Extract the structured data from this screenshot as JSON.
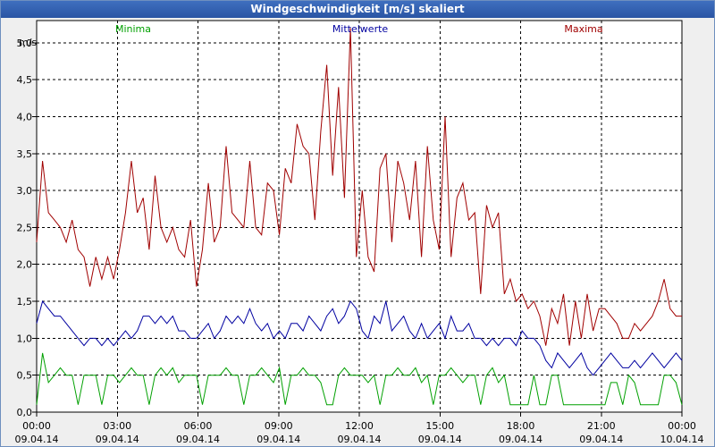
{
  "window": {
    "title": "Windgeschwindigkeit [m/s] skaliert"
  },
  "chart_data": {
    "type": "line",
    "title": "Windgeschwindigkeit [m/s] skaliert",
    "ylabel": "m/s",
    "ylim": [
      0,
      5.3
    ],
    "xlim": [
      0,
      24
    ],
    "y_ticks": [
      "0,0",
      "0,5",
      "1,0",
      "1,5",
      "2,0",
      "2,5",
      "3,0",
      "3,5",
      "4,0",
      "4,5",
      "5,0"
    ],
    "x_ticks": [
      {
        "time": "00:00",
        "date": "09.04.14"
      },
      {
        "time": "03:00",
        "date": "09.04.14"
      },
      {
        "time": "06:00",
        "date": "09.04.14"
      },
      {
        "time": "09:00",
        "date": "09.04.14"
      },
      {
        "time": "12:00",
        "date": "09.04.14"
      },
      {
        "time": "15:00",
        "date": "09.04.14"
      },
      {
        "time": "18:00",
        "date": "09.04.14"
      },
      {
        "time": "21:00",
        "date": "09.04.14"
      },
      {
        "time": "00:00",
        "date": "10.04.14"
      }
    ],
    "grid": true,
    "series": [
      {
        "name": "Minima",
        "color": "#00a000",
        "values": [
          0.1,
          0.8,
          0.4,
          0.5,
          0.6,
          0.5,
          0.5,
          0.1,
          0.5,
          0.5,
          0.5,
          0.1,
          0.5,
          0.5,
          0.4,
          0.5,
          0.6,
          0.5,
          0.5,
          0.1,
          0.5,
          0.6,
          0.5,
          0.6,
          0.4,
          0.5,
          0.5,
          0.5,
          0.1,
          0.5,
          0.5,
          0.5,
          0.6,
          0.5,
          0.5,
          0.1,
          0.5,
          0.5,
          0.6,
          0.5,
          0.4,
          0.6,
          0.1,
          0.5,
          0.5,
          0.6,
          0.5,
          0.5,
          0.4,
          0.1,
          0.1,
          0.5,
          0.6,
          0.5,
          0.5,
          0.5,
          0.4,
          0.5,
          0.1,
          0.5,
          0.5,
          0.6,
          0.5,
          0.5,
          0.6,
          0.4,
          0.5,
          0.1,
          0.5,
          0.5,
          0.6,
          0.5,
          0.4,
          0.5,
          0.5,
          0.1,
          0.5,
          0.6,
          0.4,
          0.5,
          0.1,
          0.1,
          0.1,
          0.1,
          0.5,
          0.1,
          0.1,
          0.5,
          0.5,
          0.1,
          0.1,
          0.1,
          0.1,
          0.1,
          0.1,
          0.1,
          0.1,
          0.4,
          0.4,
          0.1,
          0.5,
          0.4,
          0.1,
          0.1,
          0.1,
          0.1,
          0.5,
          0.5,
          0.4,
          0.1
        ]
      },
      {
        "name": "Mittelwerte",
        "color": "#0000a0",
        "values": [
          1.2,
          1.5,
          1.4,
          1.3,
          1.3,
          1.2,
          1.1,
          1.0,
          0.9,
          1.0,
          1.0,
          0.9,
          1.0,
          0.9,
          1.0,
          1.1,
          1.0,
          1.1,
          1.3,
          1.3,
          1.2,
          1.3,
          1.2,
          1.3,
          1.1,
          1.1,
          1.0,
          1.0,
          1.1,
          1.2,
          1.0,
          1.1,
          1.3,
          1.2,
          1.3,
          1.2,
          1.4,
          1.2,
          1.1,
          1.2,
          1.0,
          1.1,
          1.0,
          1.2,
          1.2,
          1.1,
          1.3,
          1.2,
          1.1,
          1.3,
          1.4,
          1.2,
          1.3,
          1.5,
          1.4,
          1.1,
          1.0,
          1.3,
          1.2,
          1.5,
          1.1,
          1.2,
          1.3,
          1.1,
          1.0,
          1.2,
          1.0,
          1.1,
          1.2,
          1.0,
          1.3,
          1.1,
          1.1,
          1.2,
          1.0,
          1.0,
          0.9,
          1.0,
          0.9,
          1.0,
          1.0,
          0.9,
          1.1,
          1.0,
          1.0,
          0.9,
          0.7,
          0.6,
          0.8,
          0.7,
          0.6,
          0.7,
          0.8,
          0.6,
          0.5,
          0.6,
          0.7,
          0.8,
          0.7,
          0.6,
          0.6,
          0.7,
          0.6,
          0.7,
          0.8,
          0.7,
          0.6,
          0.7,
          0.8,
          0.7
        ]
      },
      {
        "name": "Maxima",
        "color": "#a00000",
        "values": [
          2.3,
          3.4,
          2.7,
          2.6,
          2.5,
          2.3,
          2.6,
          2.2,
          2.1,
          1.7,
          2.1,
          1.8,
          2.1,
          1.8,
          2.2,
          2.7,
          3.4,
          2.7,
          2.9,
          2.2,
          3.2,
          2.5,
          2.3,
          2.5,
          2.2,
          2.1,
          2.6,
          1.7,
          2.2,
          3.1,
          2.3,
          2.5,
          3.6,
          2.7,
          2.6,
          2.5,
          3.4,
          2.5,
          2.4,
          3.1,
          3.0,
          2.4,
          3.3,
          3.1,
          3.9,
          3.6,
          3.5,
          2.6,
          3.8,
          4.7,
          3.2,
          4.4,
          2.9,
          5.2,
          2.1,
          3.0,
          2.1,
          1.9,
          3.3,
          3.5,
          2.3,
          3.4,
          3.1,
          2.6,
          3.4,
          2.1,
          3.6,
          2.6,
          2.2,
          4.0,
          2.1,
          2.9,
          3.1,
          2.6,
          2.7,
          1.6,
          2.8,
          2.5,
          2.7,
          1.6,
          1.8,
          1.5,
          1.6,
          1.4,
          1.5,
          1.3,
          0.9,
          1.4,
          1.2,
          1.6,
          0.9,
          1.5,
          1.0,
          1.6,
          1.1,
          1.4,
          1.4,
          1.3,
          1.2,
          1.0,
          1.0,
          1.2,
          1.1,
          1.2,
          1.3,
          1.5,
          1.8,
          1.4,
          1.3,
          1.3
        ]
      }
    ]
  }
}
